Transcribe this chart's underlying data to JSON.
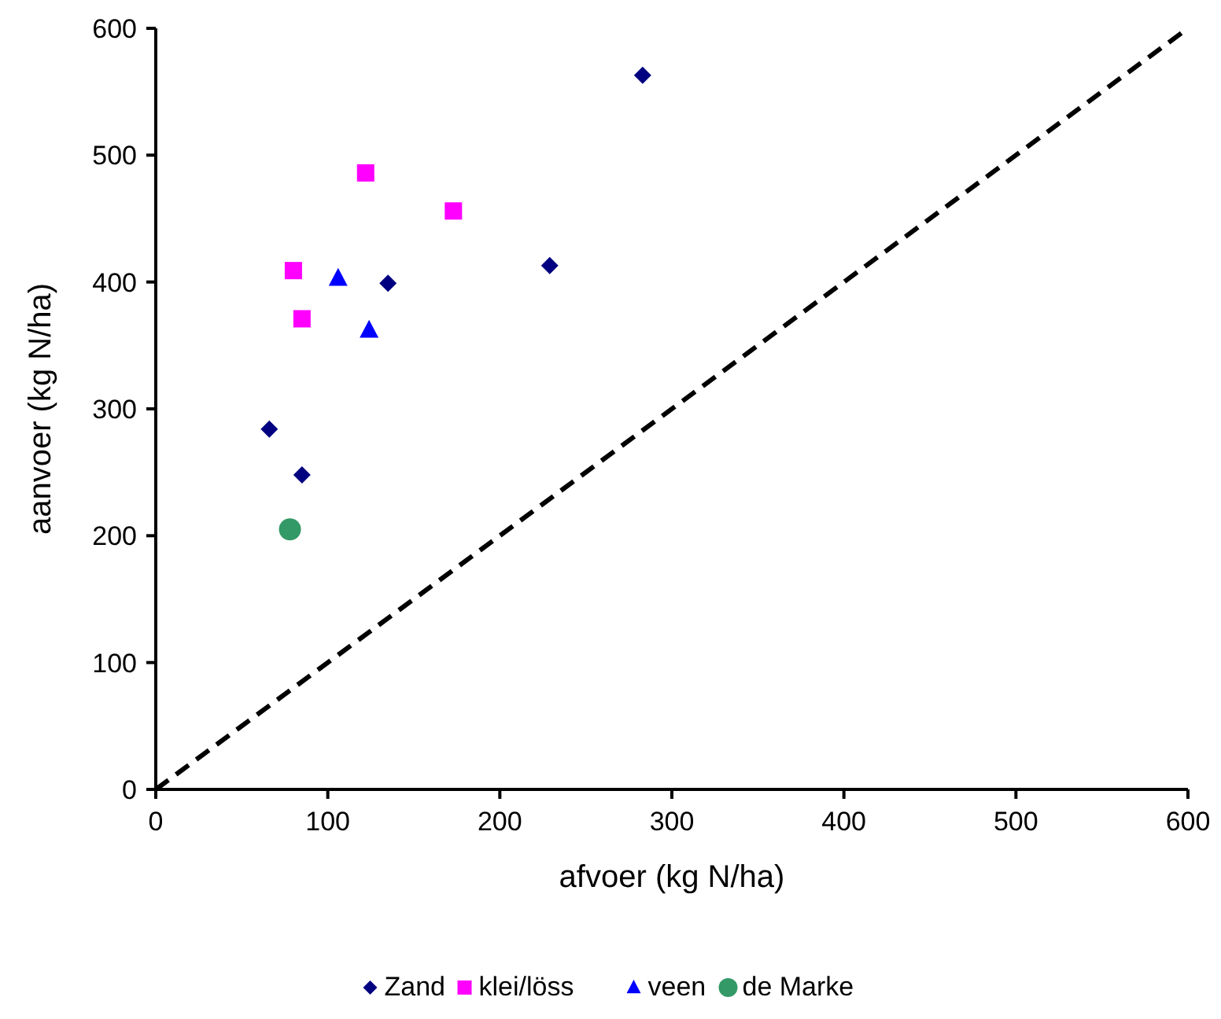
{
  "chart_data": {
    "type": "scatter",
    "xlabel": "afvoer (kg N/ha)",
    "ylabel": "aanvoer (kg N/ha)",
    "xlim": [
      0,
      600
    ],
    "ylim": [
      0,
      600
    ],
    "xticks": [
      0,
      100,
      200,
      300,
      400,
      500,
      600
    ],
    "yticks": [
      0,
      100,
      200,
      300,
      400,
      500,
      600
    ],
    "grid": false,
    "legend": "bottom",
    "series": [
      {
        "name": "Zand",
        "color": "#000080",
        "marker": "diamond",
        "x": [
          66,
          85,
          135,
          229,
          283
        ],
        "values": [
          284,
          248,
          399,
          413,
          563
        ]
      },
      {
        "name": "klei/löss",
        "color": "#ff00ff",
        "marker": "square",
        "x": [
          80,
          85,
          122,
          173
        ],
        "values": [
          409,
          371,
          486,
          456
        ]
      },
      {
        "name": "veen",
        "color": "#0000ff",
        "marker": "triangle",
        "x": [
          106,
          124
        ],
        "values": [
          403,
          362
        ]
      },
      {
        "name": "de Marke",
        "color": "#339966",
        "marker": "circle",
        "x": [
          78
        ],
        "values": [
          205
        ]
      },
      {
        "type": "line",
        "color": "#000000",
        "line_style": "dashed",
        "marker": "none",
        "x": [
          0,
          600
        ],
        "values": [
          0,
          600
        ]
      }
    ]
  }
}
